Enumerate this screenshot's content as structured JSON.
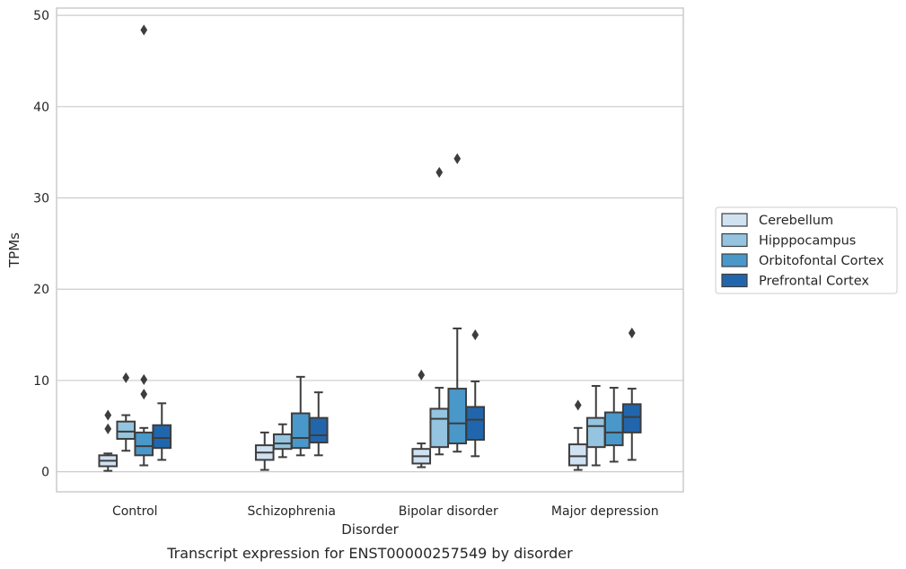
{
  "chart_data": {
    "type": "box",
    "title": "",
    "xlabel": "Disorder",
    "ylabel": "TPMs",
    "caption": "Transcript expression for ENST00000257549 by disorder",
    "ylim": [
      -2.2,
      50.8
    ],
    "yticks": [
      0,
      10,
      20,
      30,
      40,
      50
    ],
    "grid": true,
    "legend_position": "right",
    "categories": [
      "Control",
      "Schizophrenia",
      "Bipolar disorder",
      "Major depression"
    ],
    "series": [
      {
        "name": "Cerebellum",
        "color": "#d0e1f2",
        "boxes": [
          {
            "whislo": 0.1,
            "q1": 0.6,
            "med": 1.2,
            "q3": 1.8,
            "whishi": 2.0,
            "fliers": [
              6.2,
              4.7
            ]
          },
          {
            "whislo": 0.2,
            "q1": 1.3,
            "med": 2.1,
            "q3": 2.9,
            "whishi": 4.3,
            "fliers": []
          },
          {
            "whislo": 0.5,
            "q1": 0.9,
            "med": 1.7,
            "q3": 2.5,
            "whishi": 3.1,
            "fliers": [
              10.6
            ]
          },
          {
            "whislo": 0.2,
            "q1": 0.7,
            "med": 1.7,
            "q3": 3.0,
            "whishi": 4.8,
            "fliers": [
              7.3
            ]
          }
        ]
      },
      {
        "name": "Hipppocampus",
        "color": "#94c4df",
        "boxes": [
          {
            "whislo": 2.3,
            "q1": 3.6,
            "med": 4.4,
            "q3": 5.5,
            "whishi": 6.2,
            "fliers": [
              10.3
            ]
          },
          {
            "whislo": 1.6,
            "q1": 2.5,
            "med": 3.1,
            "q3": 4.1,
            "whishi": 5.2,
            "fliers": []
          },
          {
            "whislo": 1.9,
            "q1": 2.7,
            "med": 5.8,
            "q3": 6.9,
            "whishi": 9.2,
            "fliers": [
              32.8
            ]
          },
          {
            "whislo": 0.7,
            "q1": 2.7,
            "med": 5.0,
            "q3": 5.9,
            "whishi": 9.4,
            "fliers": []
          }
        ]
      },
      {
        "name": "Orbitofontal Cortex",
        "color": "#4a98c9",
        "boxes": [
          {
            "whislo": 0.7,
            "q1": 1.8,
            "med": 2.8,
            "q3": 4.3,
            "whishi": 4.8,
            "fliers": [
              10.1,
              8.5,
              48.4
            ]
          },
          {
            "whislo": 1.8,
            "q1": 2.6,
            "med": 3.7,
            "q3": 6.4,
            "whishi": 10.4,
            "fliers": []
          },
          {
            "whislo": 2.2,
            "q1": 3.1,
            "med": 5.3,
            "q3": 9.1,
            "whishi": 15.7,
            "fliers": [
              34.3
            ]
          },
          {
            "whislo": 1.1,
            "q1": 2.9,
            "med": 4.3,
            "q3": 6.5,
            "whishi": 9.2,
            "fliers": []
          }
        ]
      },
      {
        "name": "Prefrontal Cortex",
        "color": "#2166ac",
        "boxes": [
          {
            "whislo": 1.3,
            "q1": 2.6,
            "med": 3.7,
            "q3": 5.1,
            "whishi": 7.5,
            "fliers": []
          },
          {
            "whislo": 1.8,
            "q1": 3.2,
            "med": 4.0,
            "q3": 5.9,
            "whishi": 8.7,
            "fliers": []
          },
          {
            "whislo": 1.7,
            "q1": 3.5,
            "med": 5.7,
            "q3": 7.1,
            "whishi": 9.9,
            "fliers": [
              15.0
            ]
          },
          {
            "whislo": 1.3,
            "q1": 4.3,
            "med": 6.0,
            "q3": 7.4,
            "whishi": 9.1,
            "fliers": [
              15.2
            ]
          }
        ]
      }
    ]
  },
  "colors": {
    "grid": "#cccccc",
    "box_edge": "#3d3d3d",
    "text": "#262626"
  }
}
